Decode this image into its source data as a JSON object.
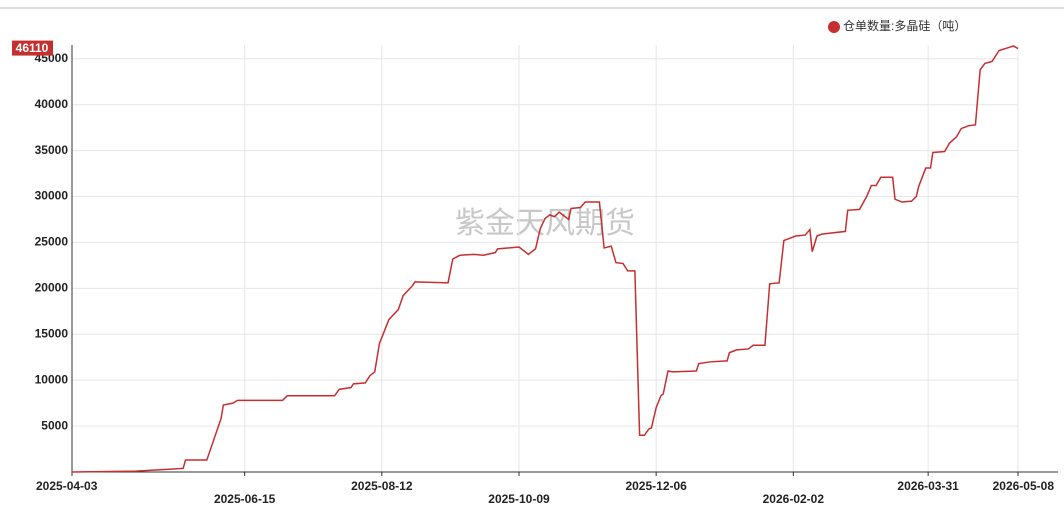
{
  "chart_data": {
    "type": "line",
    "watermark": "紫金天风期货",
    "current_value": 46110,
    "xlim": [
      "2025-04-03",
      "2026-05-08"
    ],
    "xticks": [
      "2025-04-03",
      "2025-06-15",
      "2025-08-12",
      "2025-10-09",
      "2025-12-06",
      "2026-02-02",
      "2026-03-31",
      "2026-05-08"
    ],
    "ylim": [
      0,
      46500
    ],
    "yticks": [
      5000,
      10000,
      15000,
      20000,
      25000,
      30000,
      35000,
      40000,
      45000
    ],
    "grid": true,
    "legend": "top-right",
    "x": [
      "2025-04-03",
      "2025-04-30",
      "2025-05-14",
      "2025-05-20",
      "2025-05-21",
      "2025-05-30",
      "2025-06-05",
      "2025-06-06",
      "2025-06-10",
      "2025-06-12",
      "2025-07-01",
      "2025-07-03",
      "2025-07-23",
      "2025-07-25",
      "2025-07-30",
      "2025-07-31",
      "2025-08-05",
      "2025-08-07",
      "2025-08-09",
      "2025-08-11",
      "2025-08-15",
      "2025-08-19",
      "2025-08-21",
      "2025-08-25",
      "2025-08-26",
      "2025-09-09",
      "2025-09-11",
      "2025-09-14",
      "2025-09-20",
      "2025-09-24",
      "2025-09-29",
      "2025-09-30",
      "2025-10-09",
      "2025-10-13",
      "2025-10-16",
      "2025-10-18",
      "2025-10-20",
      "2025-10-22",
      "2025-10-24",
      "2025-10-26",
      "2025-10-30",
      "2025-10-31",
      "2025-11-04",
      "2025-11-06",
      "2025-11-12",
      "2025-11-14",
      "2025-11-17",
      "2025-11-19",
      "2025-11-22",
      "2025-11-24",
      "2025-11-27",
      "2025-11-29",
      "2025-12-01",
      "2025-12-03",
      "2025-12-04",
      "2025-12-06",
      "2025-12-08",
      "2025-12-09",
      "2025-12-11",
      "2025-12-13",
      "2025-12-23",
      "2025-12-24",
      "2025-12-29",
      "2026-01-05",
      "2026-01-06",
      "2026-01-09",
      "2026-01-14",
      "2026-01-16",
      "2026-01-21",
      "2026-01-23",
      "2026-01-27",
      "2026-01-29",
      "2026-02-01",
      "2026-02-03",
      "2026-02-07",
      "2026-02-09",
      "2026-02-10",
      "2026-02-12",
      "2026-02-14",
      "2026-02-24",
      "2026-02-25",
      "2026-03-02",
      "2026-03-05",
      "2026-03-07",
      "2026-03-09",
      "2026-03-11",
      "2026-03-16",
      "2026-03-17",
      "2026-03-20",
      "2026-03-24",
      "2026-03-26",
      "2026-03-27",
      "2026-03-30",
      "2026-04-01",
      "2026-04-02",
      "2026-04-07",
      "2026-04-09",
      "2026-04-12",
      "2026-04-14",
      "2026-04-17",
      "2026-04-20",
      "2026-04-22",
      "2026-04-24",
      "2026-04-27",
      "2026-04-30",
      "2026-05-05",
      "2026-05-06",
      "2026-05-08"
    ],
    "series": [
      {
        "name": "仓单数量:多晶硅（吨）",
        "color": "#c62f2f",
        "values": [
          0,
          100,
          300,
          400,
          1300,
          1300,
          5800,
          7300,
          7500,
          7800,
          7800,
          8300,
          8300,
          9000,
          9200,
          9600,
          9700,
          10500,
          10900,
          14000,
          16600,
          17700,
          19200,
          20300,
          20700,
          20600,
          23200,
          23600,
          23700,
          23600,
          23900,
          24300,
          24500,
          23700,
          24300,
          26500,
          27600,
          28000,
          27800,
          28300,
          27500,
          28700,
          28800,
          29400,
          29400,
          24400,
          24600,
          22800,
          22700,
          21900,
          21900,
          4000,
          4000,
          4700,
          4800,
          7000,
          8300,
          8500,
          11000,
          10900,
          11000,
          11800,
          12000,
          12100,
          13000,
          13300,
          13400,
          13800,
          13800,
          20500,
          20600,
          25200,
          25500,
          25700,
          25800,
          26400,
          24000,
          25700,
          25900,
          26200,
          28500,
          28600,
          30000,
          31200,
          31200,
          32100,
          32100,
          29700,
          29400,
          29500,
          30000,
          31100,
          33100,
          33100,
          34800,
          34900,
          35800,
          36500,
          37400,
          37700,
          37800,
          43800,
          44500,
          44700,
          45900,
          46300,
          46400,
          46110
        ]
      }
    ]
  }
}
